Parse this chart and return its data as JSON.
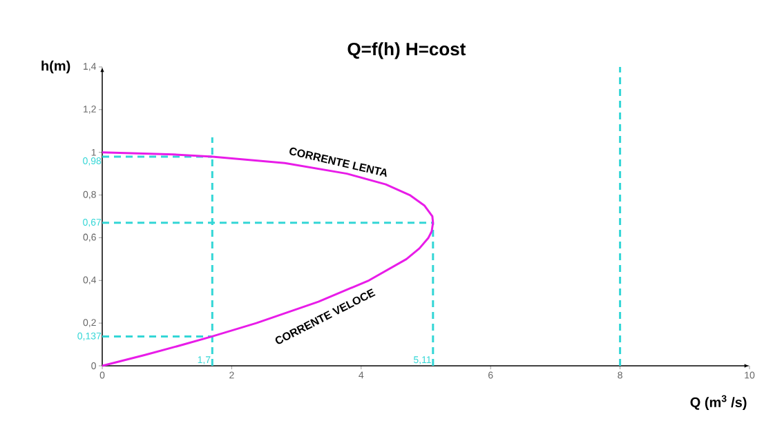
{
  "chart_data": {
    "type": "line",
    "title": "Q=f(h)   H=cost",
    "xlabel": "Q (m$^{3}$ /s)",
    "ylabel": "h(m)",
    "xlim": [
      0,
      10
    ],
    "ylim": [
      0,
      1.4
    ],
    "xticks": [
      0,
      2,
      4,
      6,
      8,
      10
    ],
    "yticks": [
      0,
      {
        "value": 0.2,
        "label": "0,2"
      },
      {
        "value": 0.4,
        "label": "0,4"
      },
      {
        "value": 0.6,
        "label": "0,6"
      },
      {
        "value": 0.8,
        "label": "0,8"
      },
      1,
      {
        "value": 1.2,
        "label": "1,2"
      },
      {
        "value": 1.4,
        "label": "1,4"
      }
    ],
    "series": [
      {
        "color": "#e81ce8",
        "line_style": "solid",
        "x": [
          0,
          0.65,
          1.26,
          1.69,
          2.38,
          3.34,
          4.12,
          4.7,
          4.9,
          5.04,
          5.09,
          5.11,
          5.1,
          4.98,
          4.75,
          4.38,
          3.78,
          2.82,
          1.7,
          1.1,
          0
        ],
        "values": [
          0,
          0.05,
          0.1,
          0.137,
          0.2,
          0.3,
          0.4,
          0.5,
          0.55,
          0.6,
          0.63,
          0.67,
          0.7,
          0.75,
          0.8,
          0.85,
          0.9,
          0.95,
          0.98,
          0.99,
          1.0
        ]
      },
      {
        "color": "#33d6d6",
        "line_style": "dashed",
        "x": [
          0,
          1.7
        ],
        "values": [
          0.98,
          0.98
        ]
      },
      {
        "color": "#33d6d6",
        "line_style": "dashed",
        "x": [
          0,
          5.11
        ],
        "values": [
          0.67,
          0.67
        ]
      },
      {
        "color": "#33d6d6",
        "line_style": "dashed",
        "x": [
          0,
          1.7
        ],
        "values": [
          0.137,
          0.137
        ]
      },
      {
        "color": "#33d6d6",
        "line_style": "dashed",
        "x": [
          1.7,
          1.7
        ],
        "values": [
          0,
          1.07
        ]
      },
      {
        "color": "#33d6d6",
        "line_style": "dashed",
        "x": [
          5.11,
          5.11
        ],
        "values": [
          0,
          0.67
        ]
      },
      {
        "color": "#33d6d6",
        "line_style": "dashed",
        "x": [
          8,
          8
        ],
        "values": [
          0,
          1.4
        ]
      }
    ],
    "annotations": [
      "CORRENTE LENTA",
      "CORRENTE VELOCE",
      {
        "text": "0,98",
        "x": 0,
        "y": 0.98
      },
      {
        "text": "0,67",
        "x": 0,
        "y": 0.67
      },
      {
        "text": "0,137",
        "x": 0,
        "y": 0.137
      },
      {
        "text": "1,7",
        "x": 1.7,
        "y": 0
      },
      {
        "text": "5,11",
        "x": 5.11,
        "y": 0
      }
    ]
  }
}
